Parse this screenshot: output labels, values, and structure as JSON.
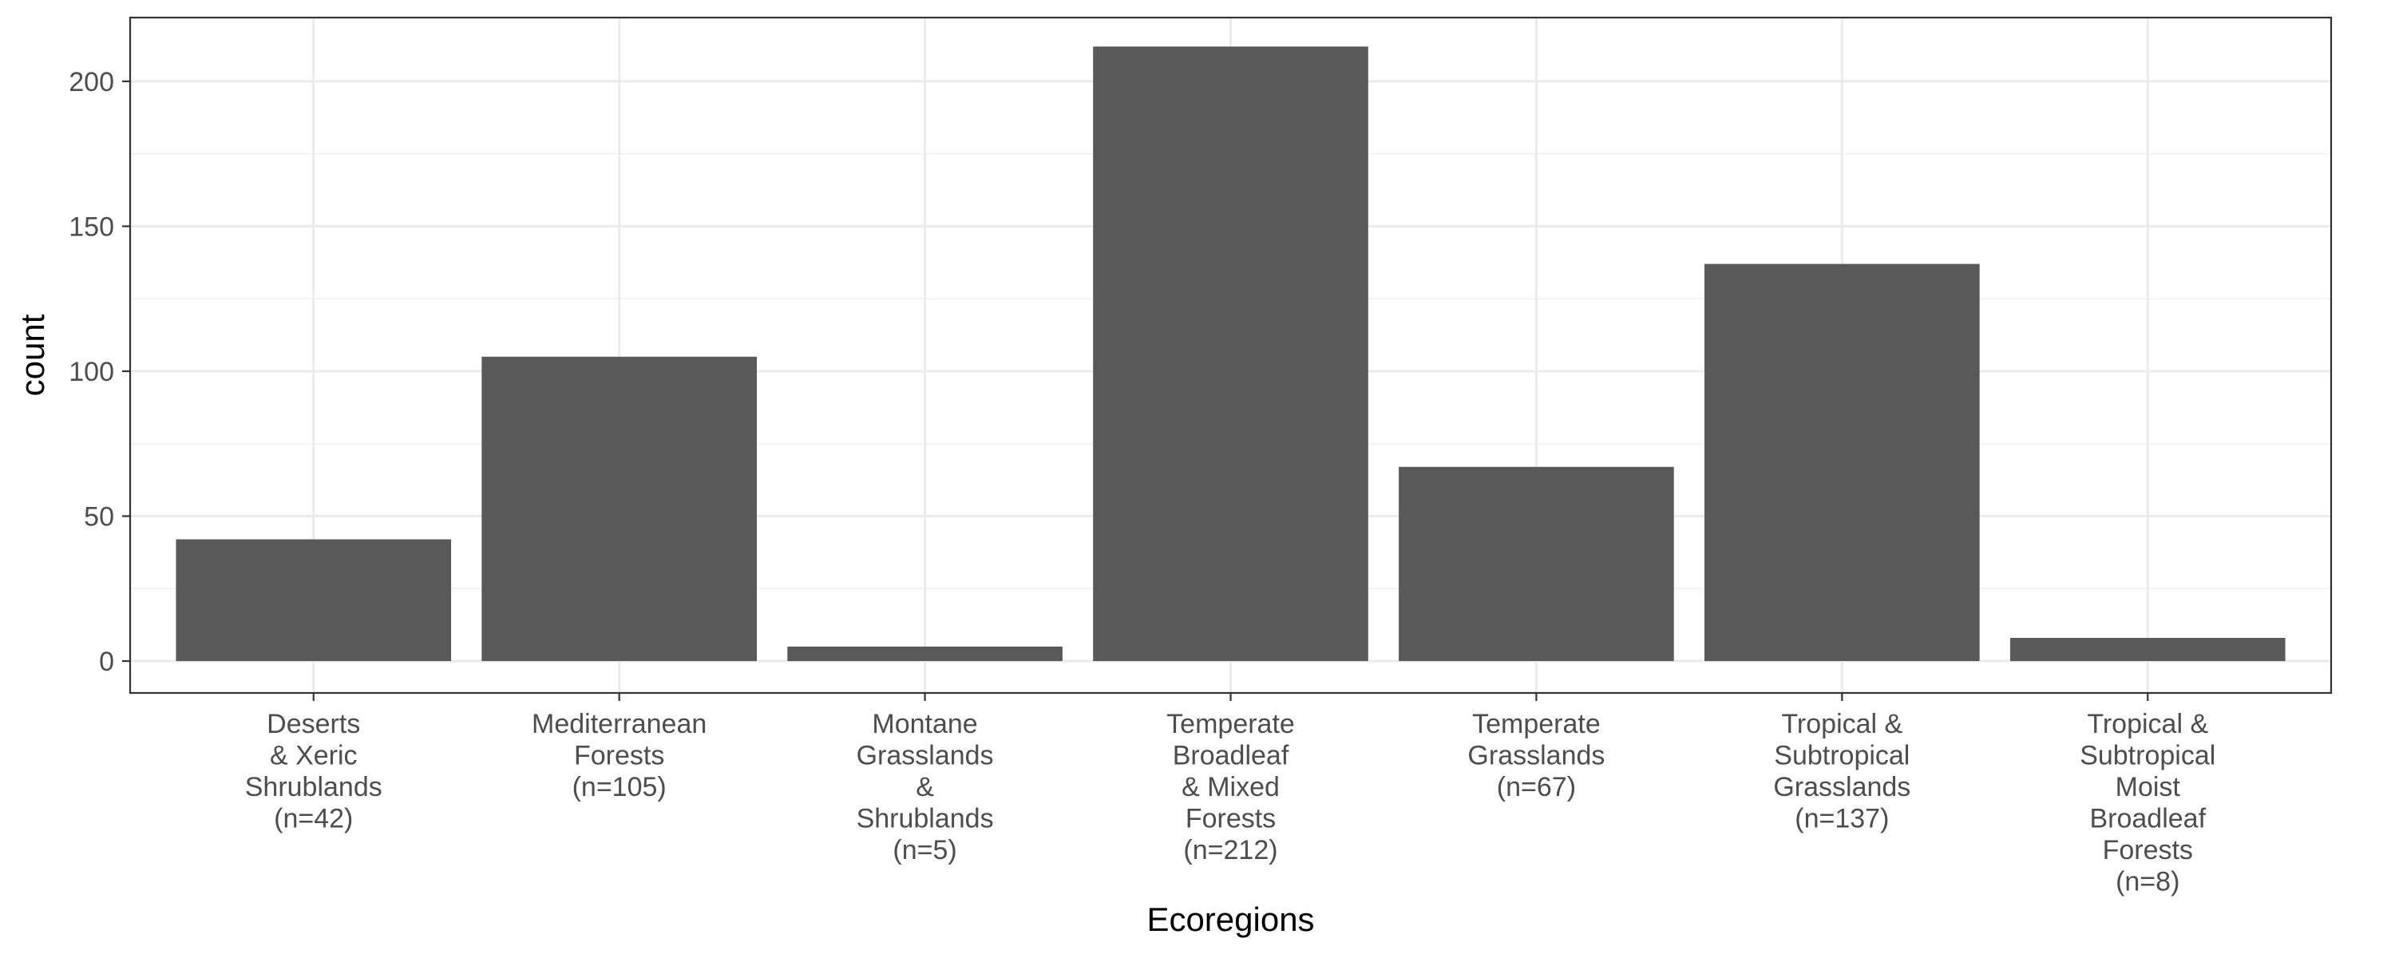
{
  "chart_data": {
    "type": "bar",
    "categories": [
      [
        "Deserts",
        "& Xeric",
        "Shrublands",
        "(n=42)"
      ],
      [
        "Mediterranean",
        "Forests",
        "(n=105)"
      ],
      [
        "Montane",
        "Grasslands",
        "&",
        "Shrublands",
        "(n=5)"
      ],
      [
        "Temperate",
        "Broadleaf",
        "& Mixed",
        "Forests",
        "(n=212)"
      ],
      [
        "Temperate",
        "Grasslands",
        "(n=67)"
      ],
      [
        "Tropical &",
        "Subtropical",
        "Grasslands",
        "(n=137)"
      ],
      [
        "Tropical &",
        "Subtropical",
        "Moist",
        "Broadleaf",
        "Forests",
        "(n=8)"
      ]
    ],
    "values": [
      42,
      105,
      5,
      212,
      67,
      137,
      8
    ],
    "xlabel": "Ecoregions",
    "ylabel": "count",
    "ylim": [
      0,
      220
    ],
    "yticks": [
      0,
      50,
      100,
      150,
      200
    ],
    "grid": true,
    "bar_color": "#595959",
    "grid_color": "#ebebeb",
    "axis_text_color": "#4d4d4d"
  }
}
